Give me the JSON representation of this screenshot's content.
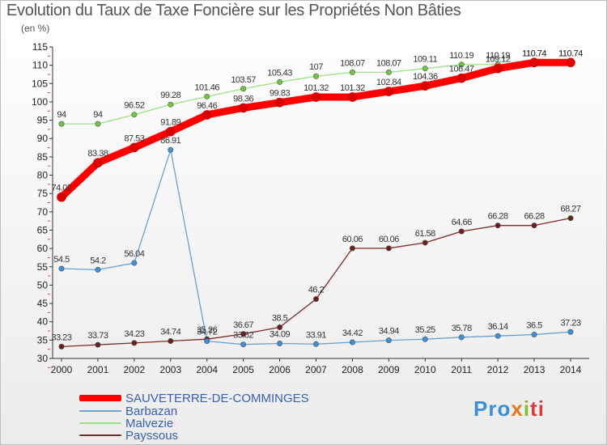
{
  "header": {
    "title": "Evolution du Taux de Taxe Foncière sur les Propriétés Non Bâties",
    "unit": "(en %)"
  },
  "brand": {
    "part1": "Pro",
    "part2": "x",
    "part3": "i",
    "part4": "ti"
  },
  "chart_data": {
    "type": "line",
    "title": "Evolution du Taux de Taxe Foncière sur les Propriétés Non Bâties",
    "ylabel": "(en %)",
    "xlabel": "",
    "x": [
      "2000",
      "2001",
      "2002",
      "2003",
      "2004",
      "2005",
      "2006",
      "2007",
      "2008",
      "2009",
      "2010",
      "2011",
      "2012",
      "2013",
      "2014"
    ],
    "ylim": [
      30,
      115
    ],
    "yticks": [
      30,
      35,
      40,
      45,
      50,
      55,
      60,
      65,
      70,
      75,
      80,
      85,
      90,
      95,
      100,
      105,
      110,
      115
    ],
    "grid": false,
    "legend_position": "bottom-left",
    "series": [
      {
        "name": "SAUVETERRE-DE-COMMINGES",
        "color": "#ff0000",
        "marker_color": "#dd0000",
        "values": [
          74.02,
          83.38,
          87.53,
          91.89,
          96.46,
          98.36,
          99.83,
          101.32,
          101.32,
          102.84,
          104.36,
          106.47,
          109.12,
          110.74,
          110.74
        ],
        "labels": [
          "74.02",
          "83.38",
          "87.53",
          "91.89",
          "96.46",
          "98.36",
          "99.83",
          "101.32",
          "101.32",
          "102.84",
          "104.36",
          "106.47",
          "109.12",
          "110.74",
          "110.74"
        ]
      },
      {
        "name": "Barbazan",
        "color": "#6b9fd0",
        "marker_color": "#3e8fd8",
        "values": [
          54.5,
          54.2,
          56.04,
          86.91,
          34.72,
          33.82,
          34.09,
          33.91,
          34.42,
          34.94,
          35.25,
          35.78,
          36.14,
          36.5,
          37.23
        ],
        "labels": [
          "54.5",
          "54.2",
          "56.04",
          "86.91",
          "34.72",
          "33.82",
          "34.09",
          "33.91",
          "34.42",
          "34.94",
          "35.25",
          "35.78",
          "36.14",
          "36.5",
          "37.23"
        ]
      },
      {
        "name": "Malvezie",
        "color": "#9ce080",
        "marker_color": "#6fc83c",
        "values": [
          94,
          94,
          96.52,
          99.28,
          101.46,
          103.57,
          105.43,
          107,
          108.07,
          108.07,
          109.11,
          110.19,
          110.19,
          110.74,
          110.74
        ],
        "labels": [
          "94",
          "94",
          "96.52",
          "99.28",
          "101.46",
          "103.57",
          "105.43",
          "107",
          "108.07",
          "108.07",
          "109.11",
          "110.19",
          "110.19",
          "110.74",
          "110.74"
        ]
      },
      {
        "name": "Payssous",
        "color": "#7b2a2a",
        "marker_color": "#6a1f1f",
        "values": [
          33.23,
          33.73,
          34.23,
          34.74,
          35.26,
          36.67,
          38.5,
          46.2,
          60.06,
          60.06,
          61.58,
          64.66,
          66.28,
          66.28,
          68.27
        ],
        "labels": [
          "33.23",
          "33.73",
          "34.23",
          "34.74",
          "35.26",
          "36.67",
          "38.5",
          "46.2",
          "60.06",
          "60.06",
          "61.58",
          "64.66",
          "66.28",
          "66.28",
          "68.27"
        ]
      }
    ]
  }
}
